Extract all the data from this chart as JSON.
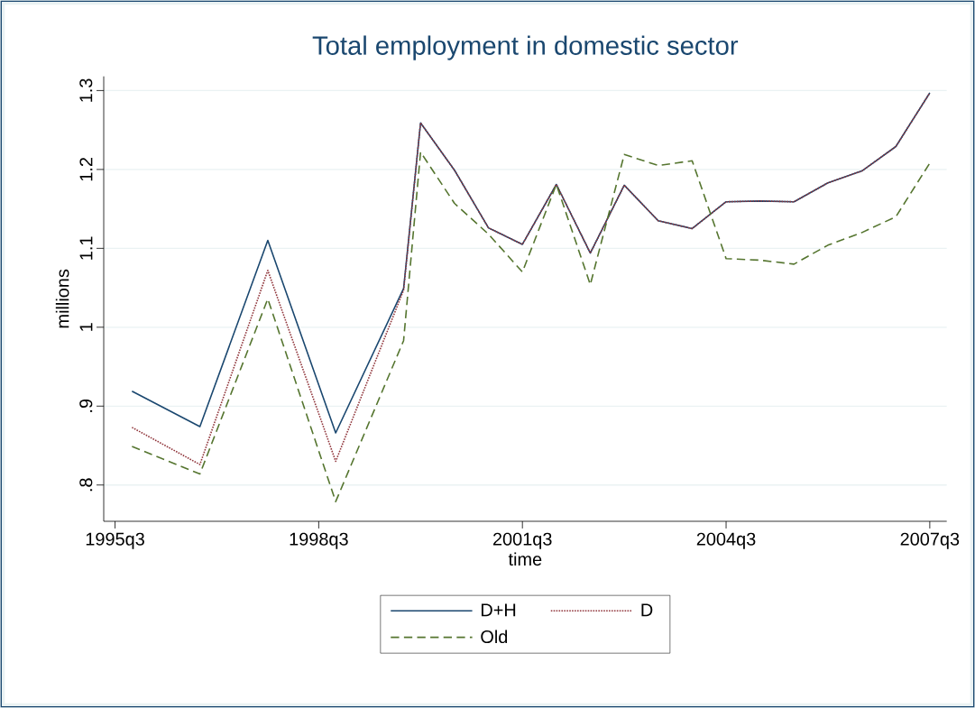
{
  "chart_data": {
    "type": "line",
    "title": "Total employment in domestic sector",
    "xlabel": "time",
    "ylabel": "millions",
    "x": [
      "1995-10",
      "1996-10",
      "1997-10",
      "1998-10",
      "1999-10",
      "2000-01",
      "2000-07",
      "2001-01",
      "2001-07",
      "2002-01",
      "2002-07",
      "2003-01",
      "2003-07",
      "2004-01",
      "2004-07",
      "2005-01",
      "2005-07",
      "2006-01",
      "2006-07",
      "2007-01",
      "2007-07"
    ],
    "series": [
      {
        "name": "D+H",
        "color": "#1a476f",
        "line_style": "solid",
        "values": [
          0.919,
          0.874,
          1.11,
          0.866,
          1.049,
          1.259,
          1.199,
          1.126,
          1.105,
          1.181,
          1.094,
          1.18,
          1.135,
          1.125,
          1.159,
          1.16,
          1.159,
          1.183,
          1.198,
          1.229,
          1.297
        ]
      },
      {
        "name": "D",
        "color": "#90353b",
        "line_style": "dotted",
        "values": [
          0.873,
          0.826,
          1.072,
          0.83,
          1.047,
          1.259,
          1.199,
          1.126,
          1.105,
          1.181,
          1.094,
          1.18,
          1.135,
          1.125,
          1.159,
          1.16,
          1.159,
          1.183,
          1.198,
          1.229,
          1.297
        ]
      },
      {
        "name": "Old",
        "color": "#55752f",
        "line_style": "dashed",
        "values": [
          0.849,
          0.814,
          1.036,
          0.779,
          0.983,
          1.222,
          1.157,
          1.118,
          1.07,
          1.181,
          1.054,
          1.219,
          1.205,
          1.211,
          1.087,
          1.085,
          1.08,
          1.104,
          1.12,
          1.14,
          1.208
        ]
      }
    ],
    "xlim": [
      "1995-05",
      "2007-10"
    ],
    "ylim": [
      0.754,
      1.318
    ],
    "xticks": [
      {
        "value": "1995-07",
        "label": "1995q3"
      },
      {
        "value": "1998-07",
        "label": "1998q3"
      },
      {
        "value": "2001-07",
        "label": "2001q3"
      },
      {
        "value": "2004-07",
        "label": "2004q3"
      },
      {
        "value": "2007-07",
        "label": "2007q3"
      }
    ],
    "yticks": [
      {
        "value": 0.8,
        "label": ".8"
      },
      {
        "value": 0.9,
        "label": ".9"
      },
      {
        "value": 1,
        "label": "1"
      },
      {
        "value": 1.1,
        "label": "1.1"
      },
      {
        "value": 1.2,
        "label": "1.2"
      },
      {
        "value": 1.3,
        "label": "1.3"
      }
    ],
    "grid": "y",
    "legend": "bottom",
    "marker": "none"
  }
}
